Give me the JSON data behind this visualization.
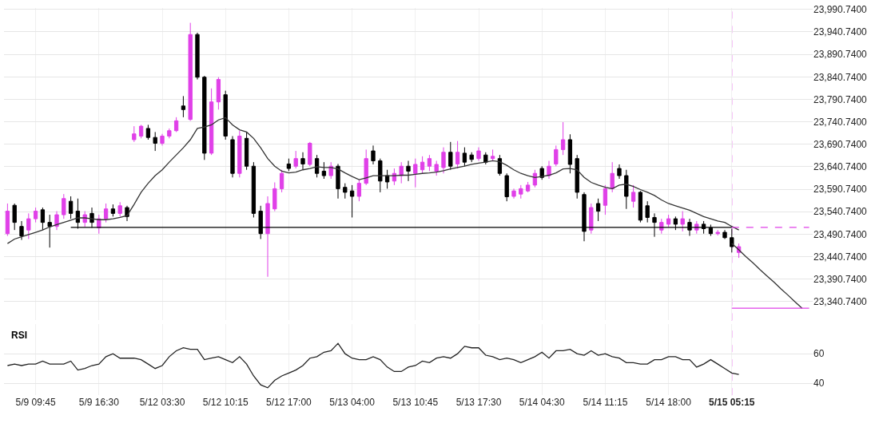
{
  "chart_data": [
    {
      "type": "candlestick",
      "categories": [
        null,
        null,
        null,
        null,
        "5/9 09:45",
        null,
        null,
        null,
        null,
        null,
        null,
        null,
        null,
        "5/9 16:30",
        null,
        null,
        null,
        null,
        null,
        null,
        null,
        null,
        "5/12 03:30",
        null,
        null,
        null,
        null,
        null,
        null,
        null,
        null,
        "5/12 10:15",
        null,
        null,
        null,
        null,
        null,
        null,
        null,
        null,
        "5/12 17:00",
        null,
        null,
        null,
        null,
        null,
        null,
        null,
        null,
        "5/13 04:00",
        null,
        null,
        null,
        null,
        null,
        null,
        null,
        null,
        "5/13 10:45",
        null,
        null,
        null,
        null,
        null,
        null,
        null,
        null,
        "5/13 17:30",
        null,
        null,
        null,
        null,
        null,
        null,
        null,
        null,
        "5/14 04:30",
        null,
        null,
        null,
        null,
        null,
        null,
        null,
        null,
        "5/14 11:15",
        null,
        null,
        null,
        null,
        null,
        null,
        null,
        null,
        "5/14 18:00",
        null,
        null,
        null,
        null,
        null,
        null,
        null,
        null,
        "5/15 05:15",
        null,
        null,
        null,
        null,
        null,
        null,
        null,
        null,
        null,
        null,
        null
      ],
      "colors": [
        "#e040e8",
        "#000000",
        "#000000",
        "#e040e8",
        "#e040e8",
        "#000000",
        "#000000",
        "#e040e8",
        "#e040e8",
        "#000000",
        "#000000",
        "#e040e8",
        "#000000",
        "#e040e8",
        "#e040e8",
        "#000000",
        "#e040e8",
        "#000000",
        "#e040e8",
        "#e040e8",
        "#000000",
        "#000000",
        "#e040e8",
        "#e040e8",
        "#e040e8",
        "#000000",
        "#e040e8",
        "#000000",
        "#000000",
        "#e040e8",
        "#e040e8",
        "#000000",
        "#000000",
        "#e040e8",
        "#000000",
        "#000000",
        "#000000",
        "#e040e8",
        "#e040e8",
        "#e040e8",
        "#000000",
        "#e040e8",
        "#000000",
        "#e040e8",
        "#000000",
        "#000000",
        "#e040e8",
        "#000000",
        "#000000",
        "#000000",
        "#e040e8",
        "#e040e8",
        "#000000",
        "#000000",
        "#000000",
        "#e040e8",
        "#e040e8",
        "#000000",
        "#e040e8",
        "#e040e8",
        "#e040e8",
        "#e040e8",
        "#e040e8",
        "#000000",
        "#e040e8",
        "#000000",
        "#000000",
        "#e040e8",
        "#000000",
        "#e040e8",
        "#000000",
        "#000000",
        "#e040e8",
        "#e040e8",
        "#e040e8",
        "#e040e8",
        "#000000",
        "#e040e8",
        "#e040e8",
        "#e040e8",
        "#000000",
        "#000000",
        "#000000",
        "#e040e8",
        "#000000",
        "#e040e8",
        "#e040e8",
        "#000000",
        "#000000",
        "#e040e8",
        "#000000",
        "#000000",
        "#000000",
        "#e040e8",
        "#e040e8",
        "#000000",
        "#e040e8",
        "#000000",
        "#e040e8",
        "#000000",
        "#000000",
        "#e040e8",
        "#000000",
        "#000000",
        "#e040e8",
        null,
        null,
        null,
        null,
        null,
        null,
        null,
        null,
        null,
        null
      ],
      "ohlc": [
        [
          23492,
          23559,
          23487,
          23542
        ],
        [
          23555,
          23559,
          23500,
          23517
        ],
        [
          23508,
          23520,
          23478,
          23487
        ],
        [
          23500,
          23537,
          23480,
          23525
        ],
        [
          23525,
          23550,
          23517,
          23542
        ],
        [
          23545,
          23550,
          23500,
          23517
        ],
        [
          23517,
          23534,
          23461,
          23508
        ],
        [
          23508,
          23542,
          23500,
          23534
        ],
        [
          23534,
          23580,
          23525,
          23570
        ],
        [
          23564,
          23575,
          23525,
          23537
        ],
        [
          23542,
          23570,
          23503,
          23517
        ],
        [
          23517,
          23542,
          23507,
          23534
        ],
        [
          23537,
          23550,
          23505,
          23517
        ],
        [
          23505,
          23534,
          23492,
          23525
        ],
        [
          23525,
          23559,
          23517,
          23547
        ],
        [
          23547,
          23557,
          23530,
          23537
        ],
        [
          23537,
          23562,
          23530,
          23554
        ],
        [
          23550,
          23554,
          23520,
          23530
        ],
        [
          23701,
          23731,
          23696,
          23714
        ],
        [
          23709,
          23734,
          23704,
          23731
        ],
        [
          23726,
          23734,
          23701,
          23706
        ],
        [
          23706,
          23718,
          23676,
          23693
        ],
        [
          23693,
          23714,
          23688,
          23709
        ],
        [
          23709,
          23726,
          23704,
          23721
        ],
        [
          23721,
          23751,
          23718,
          23743
        ],
        [
          23776,
          23798,
          23751,
          23768
        ],
        [
          23746,
          23961,
          23743,
          23935
        ],
        [
          23935,
          23939,
          23835,
          23840
        ],
        [
          23840,
          23843,
          23656,
          23671
        ],
        [
          23671,
          23815,
          23667,
          23785
        ],
        [
          23785,
          23840,
          23768,
          23835
        ],
        [
          23801,
          23810,
          23701,
          23709
        ],
        [
          23701,
          23709,
          23617,
          23626
        ],
        [
          23626,
          23721,
          23617,
          23709
        ],
        [
          23704,
          23718,
          23634,
          23642
        ],
        [
          23642,
          23651,
          23528,
          23537
        ],
        [
          23542,
          23554,
          23480,
          23492
        ],
        [
          23492,
          23575,
          23396,
          23559
        ],
        [
          23547,
          23606,
          23542,
          23592
        ],
        [
          23592,
          23634,
          23584,
          23626
        ],
        [
          23647,
          23659,
          23631,
          23637
        ],
        [
          23642,
          23676,
          23637,
          23659
        ],
        [
          23659,
          23673,
          23634,
          23647
        ],
        [
          23646,
          23696,
          23642,
          23693
        ],
        [
          23659,
          23667,
          23617,
          23626
        ],
        [
          23631,
          23651,
          23614,
          23621
        ],
        [
          23621,
          23651,
          23614,
          23642
        ],
        [
          23642,
          23647,
          23570,
          23592
        ],
        [
          23595,
          23604,
          23570,
          23584
        ],
        [
          23587,
          23600,
          23528,
          23575
        ],
        [
          23575,
          23612,
          23564,
          23604
        ],
        [
          23604,
          23679,
          23600,
          23659
        ],
        [
          23676,
          23688,
          23646,
          23654
        ],
        [
          23654,
          23659,
          23584,
          23609
        ],
        [
          23621,
          23634,
          23592,
          23607
        ],
        [
          23609,
          23637,
          23600,
          23626
        ],
        [
          23621,
          23651,
          23604,
          23642
        ],
        [
          23642,
          23654,
          23609,
          23631
        ],
        [
          23626,
          23659,
          23595,
          23646
        ],
        [
          23634,
          23664,
          23626,
          23651
        ],
        [
          23642,
          23667,
          23631,
          23659
        ],
        [
          23631,
          23654,
          23621,
          23646
        ],
        [
          23639,
          23684,
          23626,
          23673
        ],
        [
          23673,
          23696,
          23634,
          23642
        ],
        [
          23647,
          23698,
          23637,
          23673
        ],
        [
          23671,
          23684,
          23642,
          23651
        ],
        [
          23667,
          23673,
          23651,
          23657
        ],
        [
          23659,
          23684,
          23654,
          23676
        ],
        [
          23667,
          23673,
          23646,
          23651
        ],
        [
          23659,
          23679,
          23654,
          23664
        ],
        [
          23659,
          23667,
          23621,
          23626
        ],
        [
          23621,
          23626,
          23564,
          23574
        ],
        [
          23575,
          23592,
          23570,
          23587
        ],
        [
          23580,
          23600,
          23570,
          23592
        ],
        [
          23587,
          23607,
          23584,
          23600
        ],
        [
          23600,
          23634,
          23595,
          23626
        ],
        [
          23637,
          23642,
          23612,
          23617
        ],
        [
          23621,
          23654,
          23614,
          23642
        ],
        [
          23647,
          23688,
          23642,
          23679
        ],
        [
          23679,
          23740,
          23667,
          23701
        ],
        [
          23701,
          23713,
          23626,
          23646
        ],
        [
          23659,
          23667,
          23570,
          23584
        ],
        [
          23579,
          23584,
          23475,
          23497
        ],
        [
          23500,
          23559,
          23492,
          23550
        ],
        [
          23559,
          23570,
          23520,
          23542
        ],
        [
          23555,
          23600,
          23534,
          23592
        ],
        [
          23592,
          23651,
          23584,
          23626
        ],
        [
          23637,
          23646,
          23614,
          23621
        ],
        [
          23621,
          23634,
          23547,
          23575
        ],
        [
          23564,
          23600,
          23550,
          23584
        ],
        [
          23584,
          23587,
          23517,
          23522
        ],
        [
          23554,
          23564,
          23517,
          23528
        ],
        [
          23528,
          23537,
          23485,
          23517
        ],
        [
          23500,
          23525,
          23492,
          23517
        ],
        [
          23513,
          23534,
          23507,
          23525
        ],
        [
          23525,
          23530,
          23500,
          23513
        ],
        [
          23513,
          23542,
          23497,
          23525
        ],
        [
          23517,
          23525,
          23487,
          23500
        ],
        [
          23500,
          23520,
          23492,
          23513
        ],
        [
          23513,
          23520,
          23492,
          23503
        ],
        [
          23505,
          23512,
          23487,
          23492
        ],
        [
          23492,
          23500,
          23488,
          23495
        ],
        [
          23495,
          23500,
          23480,
          23483
        ],
        [
          23483,
          23503,
          23450,
          23463
        ],
        [
          23450,
          23470,
          23438,
          23463
        ],
        null,
        null,
        null,
        null,
        null,
        null,
        null,
        null,
        null,
        null
      ],
      "series": [
        {
          "type": "line",
          "color": "#333333",
          "values": [
            23470,
            23480,
            23485,
            23490,
            23495,
            23500,
            23507,
            23512,
            23517,
            23522,
            23527,
            23527,
            23525,
            23523,
            23523,
            23525,
            23528,
            23532,
            23557,
            23584,
            23604,
            23621,
            23634,
            23651,
            23667,
            23683,
            23701,
            23726,
            23729,
            23734,
            23745,
            23750,
            23734,
            23723,
            23718,
            23704,
            23683,
            23659,
            23642,
            23631,
            23627,
            23629,
            23634,
            23637,
            23641,
            23639,
            23639,
            23636,
            23627,
            23619,
            23612,
            23616,
            23621,
            23621,
            23621,
            23621,
            23622,
            23622,
            23624,
            23626,
            23627,
            23629,
            23632,
            23636,
            23639,
            23642,
            23646,
            23649,
            23651,
            23654,
            23652,
            23644,
            23634,
            23626,
            23621,
            23617,
            23619,
            23622,
            23627,
            23636,
            23637,
            23634,
            23617,
            23606,
            23600,
            23595,
            23592,
            23600,
            23602,
            23597,
            23590,
            23584,
            23577,
            23567,
            23559,
            23554,
            23549,
            23544,
            23537,
            23530,
            23525,
            23520,
            23517,
            23508,
            23500,
            null,
            null,
            null,
            null,
            null,
            null,
            null,
            null,
            null,
            null
          ]
        },
        {
          "type": "line",
          "color": "#000000",
          "values": [
            null,
            null,
            null,
            null,
            null,
            null,
            null,
            null,
            null,
            23506,
            23506,
            23506,
            23506,
            23506,
            23506,
            23506,
            23506,
            23506,
            23506,
            23506,
            23506,
            23506,
            23506,
            23506,
            23506,
            23506,
            23506,
            23506,
            23506,
            23506,
            23506,
            23506,
            23506,
            23506,
            23506,
            23506,
            23506,
            23506,
            23506,
            23506,
            23506,
            23506,
            23506,
            23506,
            23506,
            23506,
            23506,
            23506,
            23506,
            23506,
            23506,
            23506,
            23506,
            23506,
            23506,
            23506,
            23506,
            23506,
            23506,
            23506,
            23506,
            23506,
            23506,
            23506,
            23506,
            23506,
            23506,
            23506,
            23506,
            23506,
            23506,
            23506,
            23506,
            23506,
            23506,
            23506,
            23506,
            23506,
            23506,
            23506,
            23506,
            23506,
            23506,
            23506,
            23506,
            23506,
            23506,
            23506,
            23506,
            23506,
            23506,
            23506,
            23506,
            23506,
            23506,
            23506,
            23506,
            23506,
            23506,
            23506,
            23506,
            23506,
            23506,
            23506,
            null,
            null,
            null,
            null,
            null,
            null,
            null,
            null,
            null,
            null,
            null
          ]
        },
        {
          "type": "line",
          "color": "#e040e8",
          "line_style": "dashed",
          "values": [
            null,
            null,
            null,
            null,
            null,
            null,
            null,
            null,
            null,
            null,
            null,
            null,
            null,
            null,
            null,
            null,
            null,
            null,
            null,
            null,
            null,
            null,
            null,
            null,
            null,
            null,
            null,
            null,
            null,
            null,
            null,
            null,
            null,
            null,
            null,
            null,
            null,
            null,
            null,
            null,
            null,
            null,
            null,
            null,
            null,
            null,
            null,
            null,
            null,
            null,
            null,
            null,
            null,
            null,
            null,
            null,
            null,
            null,
            null,
            null,
            null,
            null,
            null,
            null,
            null,
            null,
            null,
            null,
            null,
            null,
            null,
            null,
            null,
            null,
            null,
            null,
            null,
            null,
            null,
            null,
            null,
            null,
            null,
            null,
            null,
            null,
            null,
            null,
            null,
            null,
            null,
            null,
            null,
            null,
            null,
            null,
            null,
            null,
            null,
            null,
            null,
            null,
            null,
            23506,
            23506,
            23506,
            23506,
            23506,
            23506,
            23506,
            23506,
            23506,
            23506,
            23506,
            23506
          ]
        },
        {
          "type": "line",
          "color": "#333333",
          "values": [
            null,
            null,
            null,
            null,
            null,
            null,
            null,
            null,
            null,
            null,
            null,
            null,
            null,
            null,
            null,
            null,
            null,
            null,
            null,
            null,
            null,
            null,
            null,
            null,
            null,
            null,
            null,
            null,
            null,
            null,
            null,
            null,
            null,
            null,
            null,
            null,
            null,
            null,
            null,
            null,
            null,
            null,
            null,
            null,
            null,
            null,
            null,
            null,
            null,
            null,
            null,
            null,
            null,
            null,
            null,
            null,
            null,
            null,
            null,
            null,
            null,
            null,
            null,
            null,
            null,
            null,
            null,
            null,
            null,
            null,
            null,
            null,
            null,
            null,
            null,
            null,
            null,
            null,
            null,
            null,
            null,
            null,
            null,
            null,
            null,
            null,
            null,
            null,
            null,
            null,
            null,
            null,
            null,
            null,
            null,
            null,
            null,
            null,
            null,
            null,
            null,
            null,
            null,
            23470,
            23456,
            23441,
            23427,
            23412,
            23398,
            23384,
            23369,
            23355,
            23340,
            23326,
            null
          ]
        },
        {
          "type": "line",
          "color": "#e040e8",
          "values": [
            null,
            null,
            null,
            null,
            null,
            null,
            null,
            null,
            null,
            null,
            null,
            null,
            null,
            null,
            null,
            null,
            null,
            null,
            null,
            null,
            null,
            null,
            null,
            null,
            null,
            null,
            null,
            null,
            null,
            null,
            null,
            null,
            null,
            null,
            null,
            null,
            null,
            null,
            null,
            null,
            null,
            null,
            null,
            null,
            null,
            null,
            null,
            null,
            null,
            null,
            null,
            null,
            null,
            null,
            null,
            null,
            null,
            null,
            null,
            null,
            null,
            null,
            null,
            null,
            null,
            null,
            null,
            null,
            null,
            null,
            null,
            null,
            null,
            null,
            null,
            null,
            null,
            null,
            null,
            null,
            null,
            null,
            null,
            null,
            null,
            null,
            null,
            null,
            null,
            null,
            null,
            null,
            null,
            null,
            null,
            null,
            null,
            null,
            null,
            null,
            null,
            null,
            null,
            23326,
            23326,
            23326,
            23326,
            23326,
            23326,
            23326,
            23326,
            23326,
            23326,
            23326,
            23326
          ]
        }
      ],
      "ylim": [
        23299,
        23994
      ],
      "yticks": [
        {
          "value": 23340.74,
          "label": "23,340.7400"
        },
        {
          "value": 23390.74,
          "label": "23,390.7400"
        },
        {
          "value": 23440.74,
          "label": "23,440.7400"
        },
        {
          "value": 23490.74,
          "label": "23,490.7400"
        },
        {
          "value": 23540.74,
          "label": "23,540.7400"
        },
        {
          "value": 23590.74,
          "label": "23,590.7400"
        },
        {
          "value": 23640.74,
          "label": "23,640.7400"
        },
        {
          "value": 23690.74,
          "label": "23,690.7400"
        },
        {
          "value": 23740.74,
          "label": "23,740.7400"
        },
        {
          "value": 23790.74,
          "label": "23,790.7400"
        },
        {
          "value": 23840.74,
          "label": "23,840.7400"
        },
        {
          "value": 23890.74,
          "label": "23,890.7400"
        },
        {
          "value": 23940.74,
          "label": "23,940.7400"
        },
        {
          "value": 23990.74,
          "label": "23,990.7400"
        }
      ],
      "ref_lines": [
        {
          "axis": "x",
          "value": "5/15 05:15",
          "color": "#e040e8",
          "line_style": "dashed"
        }
      ],
      "grid": true,
      "tick_labels": "y"
    },
    {
      "type": "line",
      "title": "RSI",
      "categories": [
        null,
        null,
        null,
        null,
        "5/9 09:45",
        null,
        null,
        null,
        null,
        null,
        null,
        null,
        null,
        "5/9 16:30",
        null,
        null,
        null,
        null,
        null,
        null,
        null,
        null,
        "5/12 03:30",
        null,
        null,
        null,
        null,
        null,
        null,
        null,
        null,
        "5/12 10:15",
        null,
        null,
        null,
        null,
        null,
        null,
        null,
        null,
        "5/12 17:00",
        null,
        null,
        null,
        null,
        null,
        null,
        null,
        null,
        "5/13 04:00",
        null,
        null,
        null,
        null,
        null,
        null,
        null,
        null,
        "5/13 10:45",
        null,
        null,
        null,
        null,
        null,
        null,
        null,
        null,
        "5/13 17:30",
        null,
        null,
        null,
        null,
        null,
        null,
        null,
        null,
        "5/14 04:30",
        null,
        null,
        null,
        null,
        null,
        null,
        null,
        null,
        "5/14 11:15",
        null,
        null,
        null,
        null,
        null,
        null,
        null,
        null,
        "5/14 18:00",
        null,
        null,
        null,
        null,
        null,
        null,
        null,
        null,
        "5/15 05:15",
        null,
        null,
        null,
        null,
        null,
        null,
        null,
        null,
        null,
        null,
        null
      ],
      "color": "#222222",
      "values": [
        52,
        53,
        52,
        53,
        53,
        55,
        53,
        53,
        53,
        55,
        49,
        50,
        52,
        53,
        58,
        60,
        57,
        57,
        57,
        56,
        53,
        50,
        52,
        58,
        62,
        64,
        63,
        63,
        56,
        57,
        58,
        56,
        54,
        58,
        53,
        45,
        39,
        37,
        42,
        45,
        47,
        49,
        52,
        57,
        58,
        61,
        62,
        67,
        60,
        57,
        56,
        56,
        58,
        56,
        51,
        48,
        48,
        51,
        52,
        55,
        54,
        57,
        58,
        57,
        60,
        65,
        64,
        64,
        59,
        58,
        56,
        57,
        56,
        54,
        56,
        58,
        61,
        57,
        62,
        62,
        63,
        60,
        59,
        62,
        59,
        60,
        58,
        57,
        54,
        54,
        53,
        53,
        56,
        56,
        58,
        58,
        56,
        56,
        51,
        53,
        56,
        53,
        50,
        47,
        46,
        null,
        null,
        null,
        null,
        null,
        null,
        null,
        null,
        null,
        null
      ],
      "ylim": [
        32,
        80
      ],
      "yticks": [
        40,
        60
      ],
      "ref_lines": [
        {
          "axis": "x",
          "value": "5/15 05:15",
          "color": "#e040e8",
          "line_style": "dashed"
        }
      ],
      "grid": true
    }
  ]
}
